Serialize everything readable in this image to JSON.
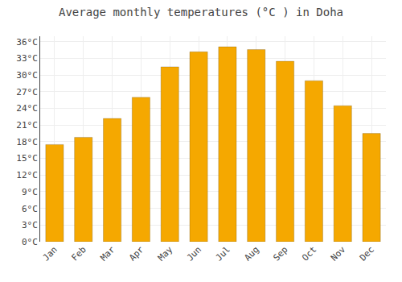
{
  "chart_data": {
    "type": "bar",
    "title": "Average monthly temperatures (°C ) in Doha",
    "categories": [
      "Jan",
      "Feb",
      "Mar",
      "Apr",
      "May",
      "Jun",
      "Jul",
      "Aug",
      "Sep",
      "Oct",
      "Nov",
      "Dec"
    ],
    "values": [
      17.5,
      18.8,
      22.2,
      26.0,
      31.5,
      34.2,
      35.1,
      34.6,
      32.5,
      29.0,
      24.5,
      19.5
    ],
    "color": "#F5A800",
    "ylim": [
      0,
      37
    ],
    "yticks": [
      {
        "value": 0,
        "label": "0°C"
      },
      {
        "value": 3,
        "label": "3°C"
      },
      {
        "value": 6,
        "label": "6°C"
      },
      {
        "value": 9,
        "label": "9°C"
      },
      {
        "value": 12,
        "label": "12°C"
      },
      {
        "value": 15,
        "label": "15°C"
      },
      {
        "value": 18,
        "label": "18°C"
      },
      {
        "value": 21,
        "label": "21°C"
      },
      {
        "value": 24,
        "label": "24°C"
      },
      {
        "value": 27,
        "label": "27°C"
      },
      {
        "value": 30,
        "label": "30°C"
      },
      {
        "value": 33,
        "label": "33°C"
      },
      {
        "value": 36,
        "label": "36°C"
      }
    ],
    "grid": true
  }
}
